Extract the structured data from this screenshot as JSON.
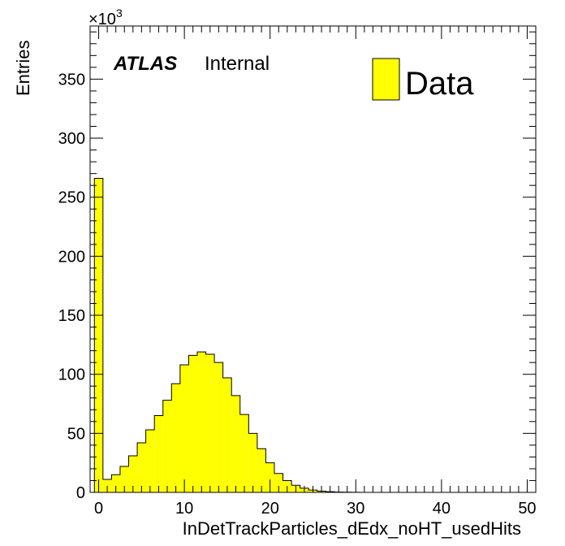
{
  "chart_data": {
    "type": "bar",
    "histogram": true,
    "xlabel": "InDetTrackParticles_dEdx_noHT_usedHits",
    "ylabel": "Entries",
    "y_multiplier_label": "×10",
    "y_multiplier_exponent": "3",
    "xlim": [
      -1,
      51
    ],
    "ylim": [
      0,
      395000
    ],
    "xticks": [
      0,
      10,
      20,
      30,
      40,
      50
    ],
    "yticks": [
      0,
      50,
      100,
      150,
      200,
      250,
      300,
      350
    ],
    "ytick_scale": 1000,
    "bin_width": 1,
    "bin_edges_start": -0.5,
    "series": [
      {
        "name": "Data",
        "fill": "#ffff00",
        "line": "#000000",
        "values": [
          266000,
          11000,
          15000,
          22000,
          31000,
          42000,
          53000,
          65000,
          78000,
          92000,
          108000,
          116000,
          119000,
          117000,
          110000,
          97000,
          82000,
          66000,
          50000,
          37000,
          25000,
          16000,
          10000,
          6000,
          3500,
          2000,
          1000,
          600,
          300,
          150,
          80,
          40,
          20,
          10,
          5,
          0,
          0,
          0,
          0,
          0,
          0,
          0,
          0,
          0,
          0,
          0,
          0,
          0,
          0,
          0,
          0
        ]
      }
    ],
    "legend_position": "top-right",
    "grid": false
  },
  "annotations": {
    "atlas": "ATLAS",
    "internal": "Internal"
  }
}
